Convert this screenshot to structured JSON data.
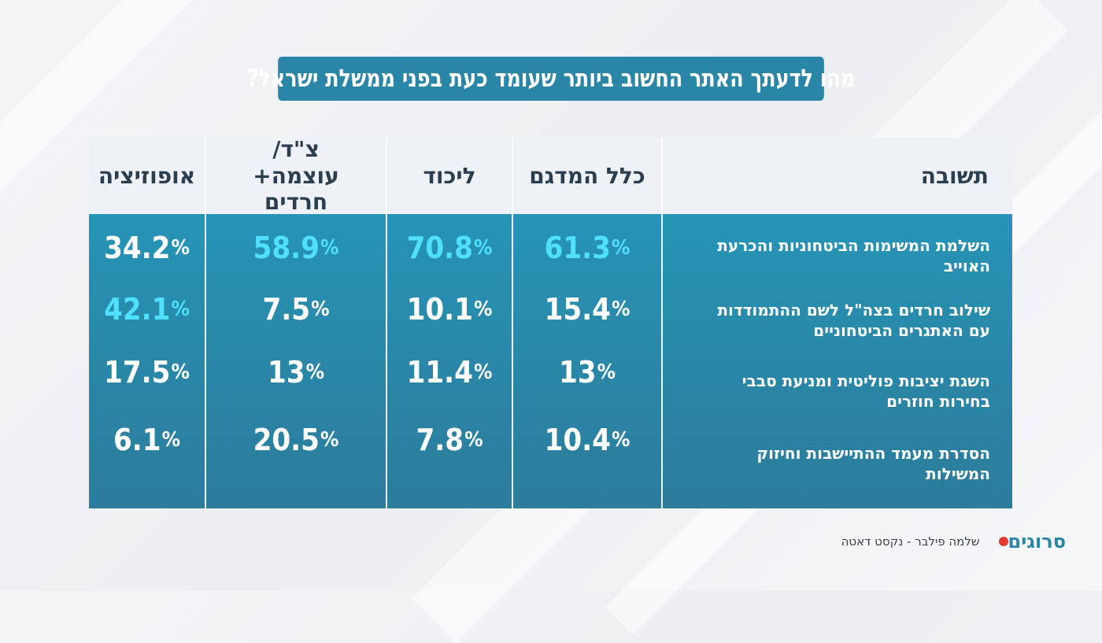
{
  "title": "מהו לדעתך האתר החשוב ביותר שעומד כעת בפני ממשלת ישראל?",
  "columns": {
    "answer": "תשובה",
    "sample": "כלל המדגם",
    "likud": "ליכוד",
    "coalition": "צ\"ד/ עוצמה+ חרדים",
    "opposition": "אופוזיציה"
  },
  "rows": [
    {
      "answer": "השלמת המשימות הביטחוניות והכרעת האוייב",
      "sample": "61.3",
      "likud": "70.8",
      "coalition": "58.9",
      "opposition": "34.2"
    },
    {
      "answer": "שילוב חרדים בצה\"ל לשם ההתמודדות עם האתגרים הביטחוניים",
      "sample": "15.4",
      "likud": "10.1",
      "coalition": "7.5",
      "opposition": "42.1"
    },
    {
      "answer": "השגת יציבות פוליטית ומניעת סבבי בחירות חוזרים",
      "sample": "13",
      "likud": "11.4",
      "coalition": "13",
      "opposition": "17.5"
    },
    {
      "answer": "הסדרת מעמד ההתיישבות וחיזוק המשילות",
      "sample": "10.4",
      "likud": "7.8",
      "coalition": "20.5",
      "opposition": "6.1"
    }
  ],
  "percent_sign": "%",
  "footer": {
    "logo": "סרוגים",
    "source": "שלמה פילבר - נקסט דאטה"
  },
  "colors": {
    "accent": "#2a86a6",
    "highlight": "#4fe0ff",
    "header_bg": "#eef1f5",
    "logo_dot": "#e4392b"
  },
  "chart_data": {
    "type": "table",
    "title": "מהו לדעתך האתר החשוב ביותר שעומד כעת בפני ממשלת ישראל?",
    "columns": [
      "תשובה",
      "כלל המדגם",
      "ליכוד",
      "צ\"ד/ עוצמה+ חרדים",
      "אופוזיציה"
    ],
    "series": [
      {
        "name": "כלל המדגם",
        "values": [
          61.3,
          15.4,
          13,
          10.4
        ]
      },
      {
        "name": "ליכוד",
        "values": [
          70.8,
          10.1,
          11.4,
          7.8
        ]
      },
      {
        "name": "צ\"ד/ עוצמה+ חרדים",
        "values": [
          58.9,
          7.5,
          13,
          20.5
        ]
      },
      {
        "name": "אופוזיציה",
        "values": [
          34.2,
          42.1,
          17.5,
          6.1
        ]
      }
    ],
    "categories": [
      "השלמת המשימות הביטחוניות והכרעת האוייב",
      "שילוב חרדים בצה\"ל לשם ההתמודדות עם האתגרים הביטחוניים",
      "השגת יציבות פוליטית ומניעת סבבי בחירות חוזרים",
      "הסדרת מעמד ההתיישבות וחיזוק המשילות"
    ],
    "highlighted": {
      "column_max": true
    }
  }
}
